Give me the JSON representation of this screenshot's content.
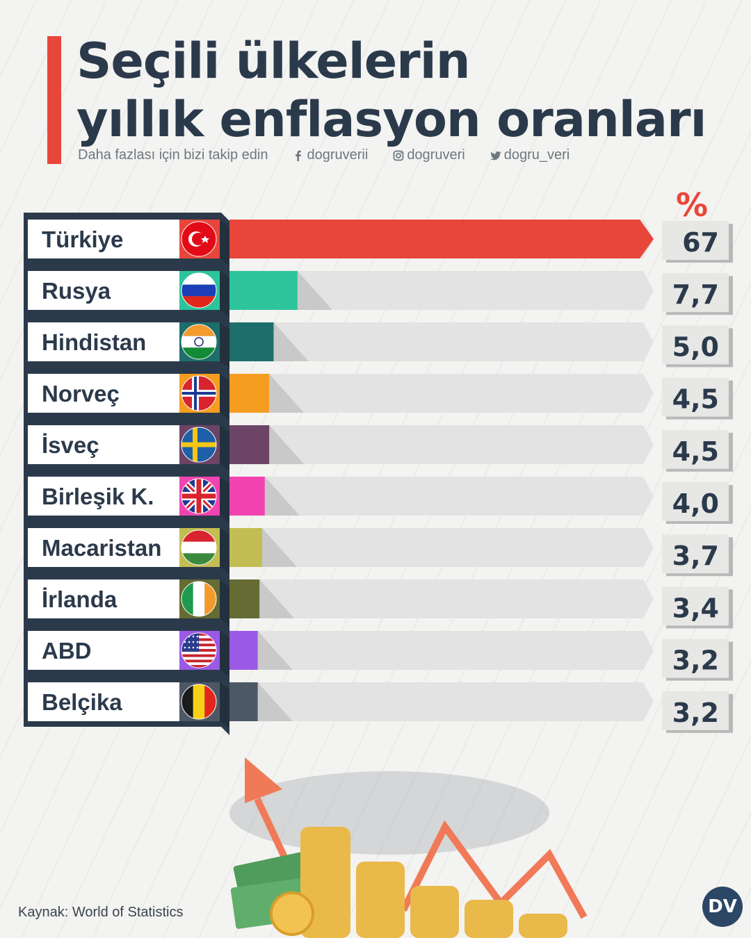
{
  "header": {
    "title_line1": "Seçili ülkelerin",
    "title_line2": "yıllık enflasyon oranları",
    "follow_text": "Daha fazlası için bizi takip edin",
    "facebook": "dogruverii",
    "instagram": "dogruveri",
    "twitter": "dogru_veri"
  },
  "chart_data": {
    "type": "bar",
    "orientation": "horizontal",
    "unit_label": "%",
    "categories": [
      "Türkiye",
      "Rusya",
      "Hindistan",
      "Norveç",
      "İsveç",
      "Birleşik K.",
      "Macaristan",
      "İrlanda",
      "ABD",
      "Belçika"
    ],
    "values": [
      67,
      7.7,
      5.0,
      4.5,
      4.5,
      4.0,
      3.7,
      3.4,
      3.2,
      3.2
    ],
    "value_labels": [
      "67",
      "7,7",
      "5,0",
      "4,5",
      "4,5",
      "4,0",
      "3,7",
      "3,4",
      "3,2",
      "3,2"
    ],
    "bar_colors": [
      "#e8463a",
      "#2ec49b",
      "#1e6e6b",
      "#f59d20",
      "#6b4466",
      "#f244b0",
      "#c3be53",
      "#656b32",
      "#9b5ae6",
      "#4d5866"
    ],
    "flags": [
      "turkey",
      "russia",
      "india",
      "norway",
      "sweden",
      "uk",
      "hungary",
      "ireland",
      "usa",
      "belgium"
    ]
  },
  "footer": {
    "source": "Kaynak: World of Statistics",
    "logo_text": "DV"
  },
  "colors": {
    "accent": "#e8463a",
    "navy": "#2b3a4b",
    "track": "#e3e3e3"
  }
}
